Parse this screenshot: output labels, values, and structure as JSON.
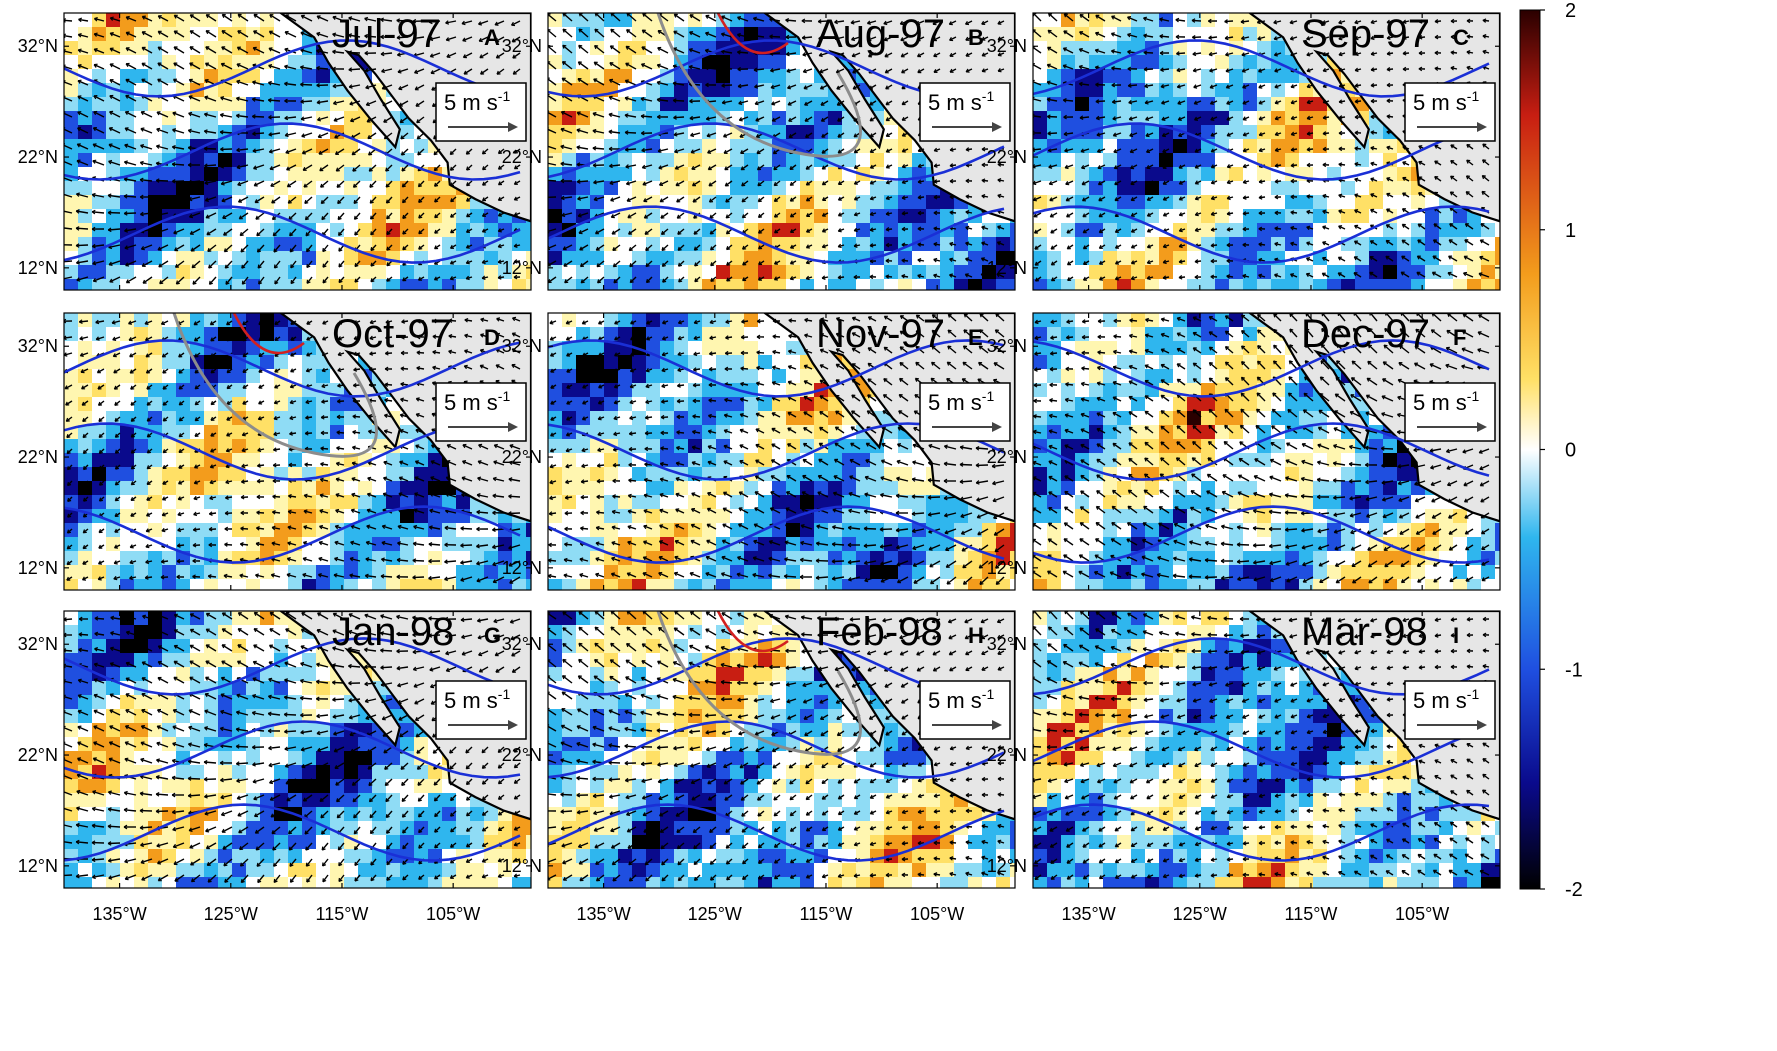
{
  "chart_data": {
    "type": "heatmap",
    "description_units": "wind-stress-curl anomaly field with wind vectors and contours, 3x3 monthly panels",
    "x_ticks": [
      "135°W",
      "125°W",
      "115°W",
      "105°W"
    ],
    "x_tick_values": [
      -135,
      -125,
      -115,
      -105
    ],
    "y_ticks": [
      "32°N",
      "22°N",
      "12°N"
    ],
    "y_tick_values": [
      32,
      22,
      12
    ],
    "xlim": [
      -140,
      -98
    ],
    "ylim": [
      10,
      35
    ],
    "colorbar": {
      "ticks": [
        "2",
        "1",
        "0",
        "-1",
        "-2"
      ],
      "tick_values": [
        2,
        1,
        0,
        -1,
        -2
      ],
      "range": [
        -2,
        2
      ],
      "colors": [
        "#000000",
        "#0a0a8c",
        "#1f4fe0",
        "#2fb6ee",
        "#ffffff",
        "#ffe066",
        "#f39c1c",
        "#c81e12",
        "#2a0000"
      ]
    },
    "scale_arrow": {
      "label": "5 m s",
      "superscript": "-1",
      "value": 5
    },
    "panels": [
      {
        "title": "Jul-97",
        "letter": "A"
      },
      {
        "title": "Aug-97",
        "letter": "B"
      },
      {
        "title": "Sep-97",
        "letter": "C"
      },
      {
        "title": "Oct-97",
        "letter": "D"
      },
      {
        "title": "Nov-97",
        "letter": "E"
      },
      {
        "title": "Dec-97",
        "letter": "F"
      },
      {
        "title": "Jan-98",
        "letter": "G"
      },
      {
        "title": "Feb-98",
        "letter": "H"
      },
      {
        "title": "Mar-98",
        "letter": "I"
      }
    ],
    "contour_colors": {
      "negative": "#1a2fd6",
      "zero": "#8c8c8c",
      "positive": "#d22020"
    },
    "land_color": "#e6e6e6"
  }
}
